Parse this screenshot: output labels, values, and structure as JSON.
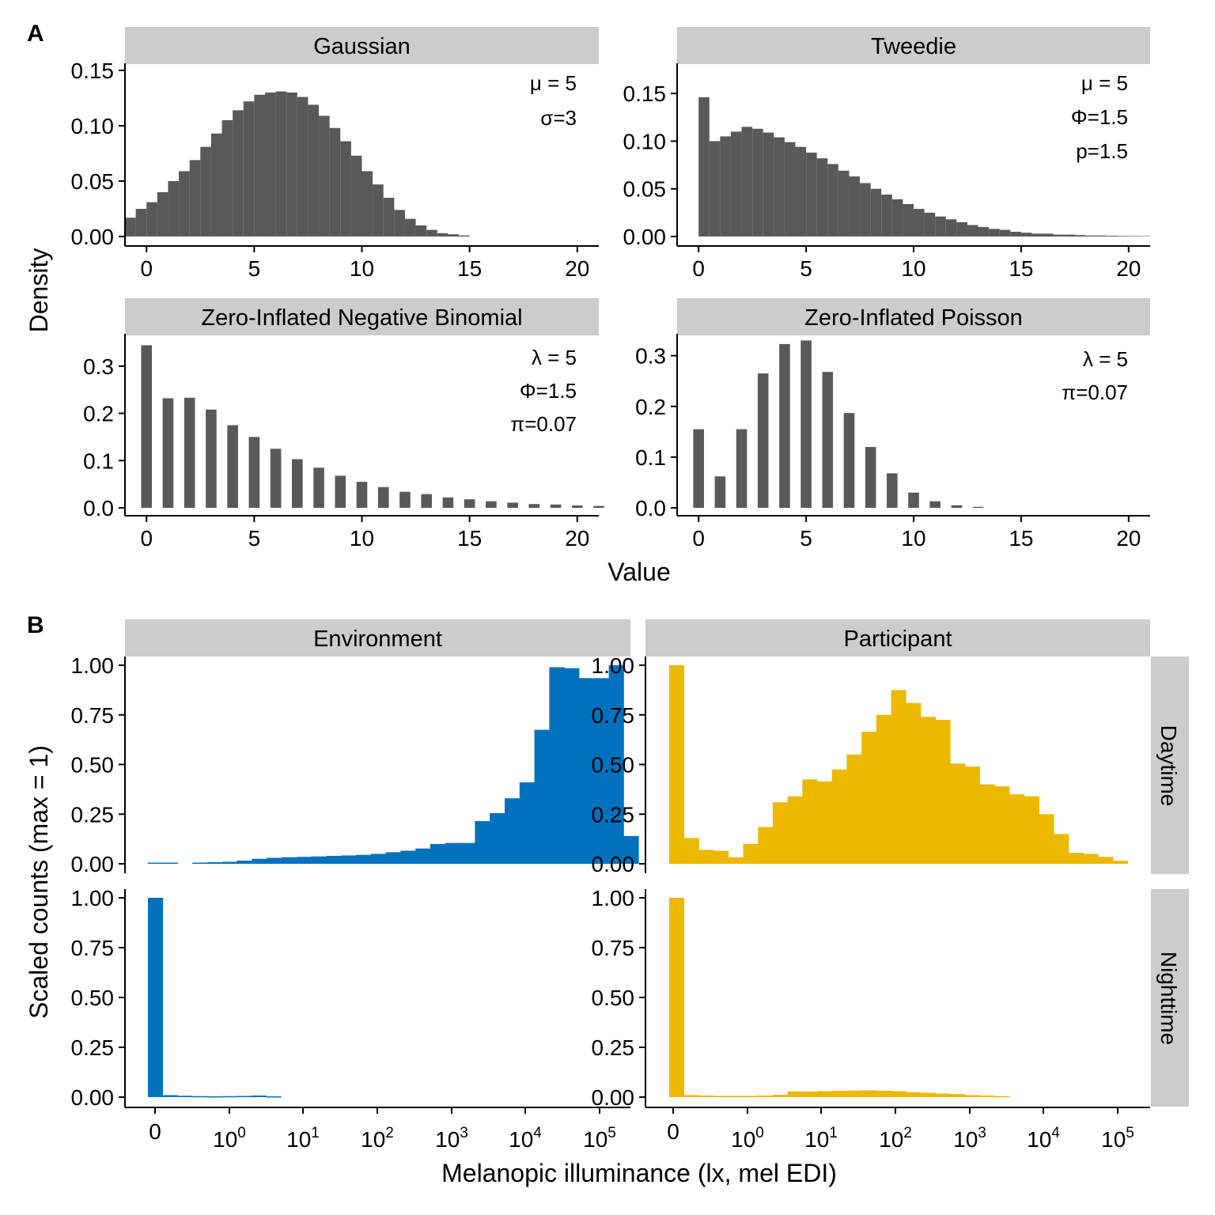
{
  "figure": {
    "panel_a_label": "A",
    "panel_b_label": "B",
    "panel_a_xlabel": "Value",
    "panel_a_ylabel": "Density",
    "panel_b_xlabel": "Melanopic illuminance (lx, mel EDI)",
    "panel_b_ylabel": "Scaled counts (max = 1)",
    "row_labels": [
      "Daytime",
      "Nighttime"
    ],
    "colors": {
      "bars_a": "#595959",
      "environment": "#0072BD",
      "participant": "#EDB800",
      "strip": "#CCCCCC"
    }
  },
  "chart_data": [
    {
      "type": "bar",
      "title": "Gaussian",
      "annotations": [
        "μ = 5",
        "σ=3"
      ],
      "xlim": [
        -1,
        21
      ],
      "ylim": [
        0,
        0.155
      ],
      "xticks": [
        "0",
        "5",
        "10",
        "15",
        "20"
      ],
      "yticks": [
        "0.00",
        "0.05",
        "0.10",
        "0.15"
      ],
      "bin_width": 0.5,
      "x": [
        -1,
        -0.5,
        0,
        0.5,
        1,
        1.5,
        2,
        2.5,
        3,
        3.5,
        4,
        4.5,
        5,
        5.5,
        6,
        6.5,
        7,
        7.5,
        8,
        8.5,
        9,
        9.5,
        10,
        10.5,
        11,
        11.5,
        12,
        12.5,
        13,
        13.5,
        14,
        14.5
      ],
      "values": [
        0.017,
        0.025,
        0.031,
        0.04,
        0.05,
        0.059,
        0.069,
        0.081,
        0.093,
        0.105,
        0.114,
        0.122,
        0.128,
        0.13,
        0.131,
        0.13,
        0.126,
        0.119,
        0.109,
        0.098,
        0.086,
        0.073,
        0.059,
        0.047,
        0.035,
        0.024,
        0.016,
        0.01,
        0.006,
        0.003,
        0.002,
        0.001
      ]
    },
    {
      "type": "bar",
      "title": "Tweedie",
      "annotations": [
        "μ = 5",
        "Φ=1.5",
        "p=1.5"
      ],
      "xlim": [
        -1,
        21
      ],
      "ylim": [
        0,
        0.18
      ],
      "xticks": [
        "0",
        "5",
        "10",
        "15",
        "20"
      ],
      "yticks": [
        "0.00",
        "0.05",
        "0.10",
        "0.15"
      ],
      "bin_width": 0.5,
      "x": [
        0,
        0.5,
        1,
        1.5,
        2,
        2.5,
        3,
        3.5,
        4,
        4.5,
        5,
        5.5,
        6,
        6.5,
        7,
        7.5,
        8,
        8.5,
        9,
        9.5,
        10,
        10.5,
        11,
        11.5,
        12,
        12.5,
        13,
        13.5,
        14,
        14.5,
        15,
        15.5,
        16,
        16.5,
        17,
        17.5,
        18,
        18.5,
        19,
        19.5,
        20,
        20.5
      ],
      "values": [
        0.146,
        0.1,
        0.105,
        0.11,
        0.115,
        0.113,
        0.109,
        0.104,
        0.099,
        0.094,
        0.088,
        0.082,
        0.076,
        0.069,
        0.063,
        0.056,
        0.05,
        0.044,
        0.039,
        0.034,
        0.029,
        0.025,
        0.021,
        0.018,
        0.015,
        0.012,
        0.01,
        0.008,
        0.007,
        0.005,
        0.004,
        0.003,
        0.003,
        0.002,
        0.002,
        0.0015,
        0.001,
        0.001,
        0.0008,
        0.0006,
        0.0005,
        0.0004
      ]
    },
    {
      "type": "bar",
      "title": "Zero-Inflated Negative Binomial",
      "annotations": [
        "λ = 5",
        "Φ=1.5",
        "π=0.07"
      ],
      "xlim": [
        -1,
        21
      ],
      "ylim": [
        0,
        0.365
      ],
      "xticks": [
        "0",
        "5",
        "10",
        "15",
        "20"
      ],
      "yticks": [
        "0.0",
        "0.1",
        "0.2",
        "0.3"
      ],
      "bin_width": 1,
      "x": [
        0,
        1,
        2,
        3,
        4,
        5,
        6,
        7,
        8,
        9,
        10,
        11,
        12,
        13,
        14,
        15,
        16,
        17,
        18,
        19,
        20,
        21
      ],
      "values": [
        0.344,
        0.232,
        0.233,
        0.208,
        0.175,
        0.15,
        0.125,
        0.103,
        0.085,
        0.068,
        0.055,
        0.044,
        0.034,
        0.029,
        0.022,
        0.018,
        0.014,
        0.011,
        0.008,
        0.007,
        0.005,
        0.004
      ]
    },
    {
      "type": "bar",
      "title": "Zero-Inflated Poisson",
      "annotations": [
        "λ = 5",
        "π=0.07"
      ],
      "xlim": [
        -1,
        21
      ],
      "ylim": [
        0,
        0.34
      ],
      "xticks": [
        "0",
        "5",
        "10",
        "15",
        "20"
      ],
      "yticks": [
        "0.0",
        "0.1",
        "0.2",
        "0.3"
      ],
      "bin_width": 1,
      "x": [
        0,
        1,
        2,
        3,
        4,
        5,
        6,
        7,
        8,
        9,
        10,
        11,
        12,
        13
      ],
      "values": [
        0.155,
        0.062,
        0.155,
        0.265,
        0.323,
        0.33,
        0.268,
        0.187,
        0.12,
        0.068,
        0.03,
        0.013,
        0.005,
        0.002
      ]
    },
    {
      "type": "bar",
      "title": "Environment",
      "row": "Daytime",
      "log_scale": true,
      "ylim": [
        0,
        1.03
      ],
      "yticks": [
        "0.00",
        "0.25",
        "0.50",
        "0.75",
        "1.00"
      ],
      "values": [
        0,
        0.006,
        0.006,
        0,
        0.006,
        0.008,
        0.01,
        0.016,
        0.025,
        0.03,
        0.033,
        0.035,
        0.037,
        0.04,
        0.042,
        0.045,
        0.05,
        0.058,
        0.066,
        0.077,
        0.1,
        0.105,
        0.105,
        0.215,
        0.255,
        0.33,
        0.41,
        0.675,
        0.99,
        0.985,
        0.935,
        0.935,
        1.0,
        0.14
      ]
    },
    {
      "type": "bar",
      "title": "Participant",
      "row": "Daytime",
      "log_scale": true,
      "ylim": [
        0,
        1.03
      ],
      "yticks": [
        "0.00",
        "0.25",
        "0.50",
        "0.75",
        "1.00"
      ],
      "values": [
        1.0,
        0.13,
        0.07,
        0.065,
        0.032,
        0.1,
        0.185,
        0.31,
        0.34,
        0.425,
        0.415,
        0.475,
        0.55,
        0.665,
        0.75,
        0.875,
        0.81,
        0.74,
        0.725,
        0.505,
        0.49,
        0.4,
        0.39,
        0.35,
        0.34,
        0.25,
        0.15,
        0.055,
        0.05,
        0.035,
        0.015
      ]
    },
    {
      "type": "bar",
      "title": "Environment",
      "row": "Nighttime",
      "log_scale": true,
      "ylim": [
        0,
        1.03
      ],
      "yticks": [
        "0.00",
        "0.25",
        "0.50",
        "0.75",
        "1.00"
      ],
      "values": [
        1.0,
        0.01,
        0.007,
        0.005,
        0.004,
        0.005,
        0.006,
        0.008,
        0.004
      ]
    },
    {
      "type": "bar",
      "title": "Participant",
      "row": "Nighttime",
      "log_scale": true,
      "ylim": [
        0,
        1.03
      ],
      "yticks": [
        "0.00",
        "0.25",
        "0.50",
        "0.75",
        "1.00"
      ],
      "values": [
        1.0,
        0.01,
        0.008,
        0.006,
        0.006,
        0.006,
        0.008,
        0.012,
        0.028,
        0.028,
        0.03,
        0.032,
        0.033,
        0.034,
        0.032,
        0.03,
        0.025,
        0.022,
        0.018,
        0.015,
        0.01,
        0.008,
        0.005
      ]
    }
  ]
}
